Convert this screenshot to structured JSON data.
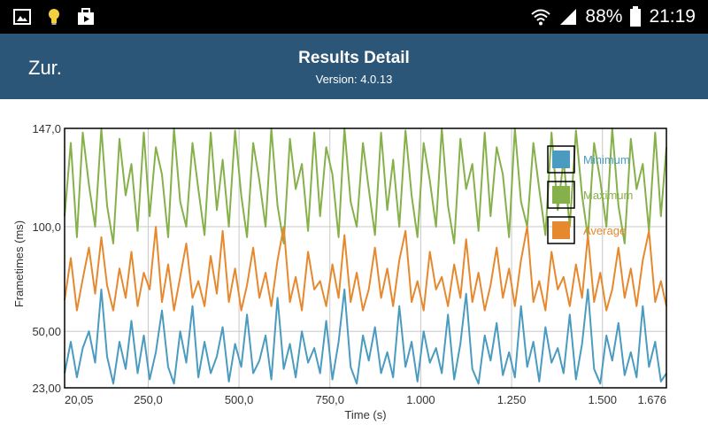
{
  "status_bar": {
    "battery": "88%",
    "time": "21:19",
    "icons": [
      "image-icon",
      "lightbulb-icon",
      "media-bag-icon",
      "wifi-icon",
      "signal-icon",
      "battery-icon"
    ]
  },
  "header": {
    "back_label": "Zur.",
    "title": "Results Detail",
    "subtitle": "Version: 4.0.13"
  },
  "colors": {
    "header_bg": "#2b5677",
    "minimum": "#4a9bbf",
    "maximum": "#86b04a",
    "average": "#e6892e"
  },
  "chart_data": {
    "type": "line",
    "xlabel": "Time (s)",
    "ylabel": "Frametimes (ms)",
    "xlim": [
      20.05,
      1676
    ],
    "ylim": [
      23,
      147
    ],
    "x_tick_labels": [
      "20,05",
      "250,0",
      "500,0",
      "750,0",
      "1.000",
      "1.250",
      "1.500",
      "1.676"
    ],
    "x_tick_values": [
      20.05,
      250,
      500,
      750,
      1000,
      1250,
      1500,
      1676
    ],
    "y_tick_labels": [
      "23,00",
      "50,00",
      "100,0",
      "147,0"
    ],
    "y_tick_values": [
      23,
      50,
      100,
      147
    ],
    "grid": true,
    "legend_position": "top-right",
    "x": [
      20,
      37,
      54,
      70,
      87,
      104,
      121,
      137,
      154,
      171,
      188,
      204,
      221,
      238,
      254,
      271,
      288,
      305,
      321,
      338,
      355,
      372,
      388,
      405,
      422,
      439,
      455,
      472,
      489,
      506,
      522,
      539,
      556,
      573,
      589,
      606,
      623,
      640,
      656,
      673,
      690,
      707,
      723,
      740,
      757,
      774,
      790,
      807,
      824,
      841,
      857,
      874,
      891,
      908,
      924,
      941,
      958,
      975,
      991,
      1008,
      1025,
      1042,
      1058,
      1075,
      1092,
      1109,
      1125,
      1142,
      1159,
      1176,
      1192,
      1209,
      1226,
      1243,
      1259,
      1276,
      1293,
      1310,
      1326,
      1343,
      1360,
      1377,
      1393,
      1410,
      1427,
      1444,
      1460,
      1477,
      1494,
      1511,
      1527,
      1544,
      1561,
      1578,
      1594,
      1611,
      1628,
      1645,
      1661,
      1676
    ],
    "series": [
      {
        "name": "Minimum",
        "values": [
          30,
          45,
          28,
          42,
          50,
          35,
          70,
          38,
          25,
          45,
          32,
          55,
          30,
          48,
          27,
          40,
          60,
          33,
          25,
          50,
          35,
          62,
          28,
          45,
          30,
          38,
          52,
          26,
          44,
          33,
          58,
          30,
          36,
          48,
          27,
          66,
          32,
          44,
          28,
          50,
          35,
          42,
          30,
          55,
          27,
          45,
          70,
          33,
          25,
          48,
          36,
          52,
          30,
          40,
          28,
          62,
          33,
          45,
          26,
          50,
          35,
          42,
          30,
          58,
          27,
          44,
          68,
          32,
          25,
          48,
          36,
          54,
          29,
          40,
          28,
          62,
          33,
          45,
          26,
          52,
          35,
          42,
          30,
          58,
          27,
          44,
          70,
          32,
          25,
          48,
          36,
          54,
          29,
          40,
          28,
          62,
          33,
          45,
          26,
          30
        ]
      },
      {
        "name": "Maximum",
        "values": [
          105,
          140,
          95,
          145,
          120,
          100,
          147,
          110,
          92,
          142,
          115,
          130,
          98,
          145,
          105,
          138,
          125,
          95,
          147,
          112,
          100,
          140,
          118,
          96,
          145,
          108,
          132,
          100,
          146,
          115,
          95,
          140,
          122,
          100,
          147,
          110,
          92,
          142,
          118,
          130,
          98,
          145,
          105,
          138,
          125,
          95,
          147,
          112,
          100,
          140,
          118,
          96,
          145,
          108,
          132,
          100,
          146,
          115,
          95,
          140,
          122,
          100,
          147,
          110,
          92,
          142,
          118,
          130,
          98,
          145,
          105,
          138,
          125,
          95,
          147,
          112,
          100,
          140,
          118,
          96,
          145,
          108,
          132,
          100,
          146,
          115,
          95,
          140,
          122,
          100,
          147,
          110,
          92,
          142,
          118,
          130,
          98,
          145,
          105,
          138
        ]
      },
      {
        "name": "Average",
        "values": [
          65,
          85,
          60,
          75,
          90,
          68,
          95,
          72,
          60,
          80,
          66,
          88,
          62,
          78,
          70,
          100,
          64,
          82,
          60,
          76,
          92,
          66,
          74,
          62,
          86,
          68,
          98,
          64,
          80,
          60,
          72,
          90,
          66,
          78,
          62,
          84,
          100,
          64,
          76,
          60,
          88,
          70,
          74,
          62,
          82,
          66,
          96,
          64,
          78,
          60,
          70,
          90,
          66,
          80,
          62,
          84,
          98,
          64,
          74,
          60,
          88,
          70,
          76,
          62,
          82,
          66,
          94,
          64,
          78,
          60,
          72,
          90,
          66,
          80,
          62,
          84,
          100,
          64,
          74,
          60,
          88,
          70,
          76,
          62,
          82,
          66,
          96,
          64,
          78,
          60,
          70,
          90,
          66,
          80,
          62,
          84,
          98,
          64,
          74,
          62
        ]
      }
    ]
  }
}
